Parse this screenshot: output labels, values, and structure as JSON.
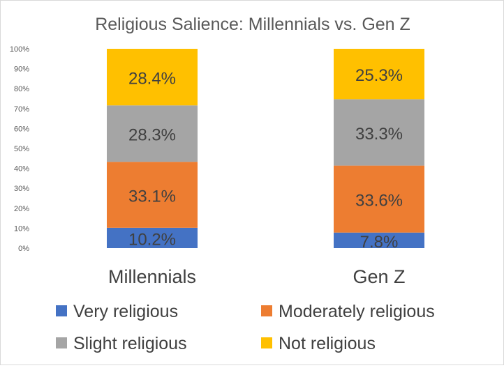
{
  "chart_data": {
    "type": "bar",
    "stacked": true,
    "title": "Religious Salience: Millennials vs. Gen Z",
    "xlabel": "",
    "ylabel": "",
    "ylim": [
      0,
      100
    ],
    "grid": false,
    "legend_position": "bottom",
    "categories": [
      "Millennials",
      "Gen Z"
    ],
    "y_ticks": [
      "0%",
      "10%",
      "20%",
      "30%",
      "40%",
      "50%",
      "60%",
      "70%",
      "80%",
      "90%",
      "100%"
    ],
    "series": [
      {
        "name": "Very religious",
        "color": "#4472c4",
        "values": [
          10.2,
          7.8
        ],
        "labels": [
          "10.2%",
          "7.8%"
        ]
      },
      {
        "name": "Moderately religious",
        "color": "#ed7d31",
        "values": [
          33.1,
          33.6
        ],
        "labels": [
          "33.1%",
          "33.6%"
        ]
      },
      {
        "name": "Slight religious",
        "color": "#a5a5a5",
        "values": [
          28.3,
          33.3
        ],
        "labels": [
          "28.3%",
          "33.3%"
        ]
      },
      {
        "name": "Not religious",
        "color": "#ffc000",
        "values": [
          28.4,
          25.3
        ],
        "labels": [
          "28.4%",
          "25.3%"
        ]
      }
    ]
  }
}
